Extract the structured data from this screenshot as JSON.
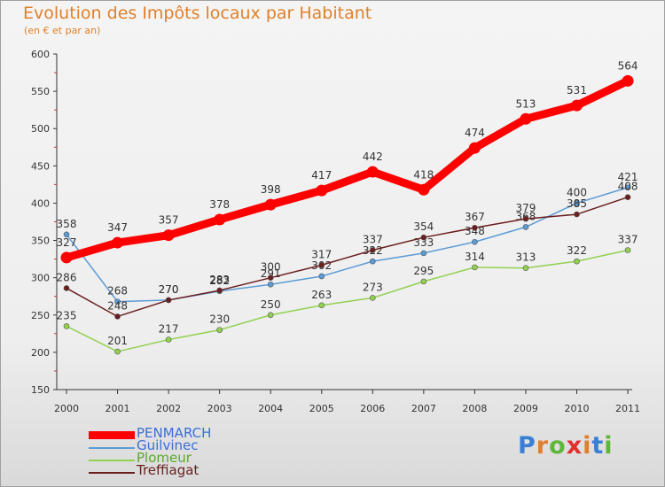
{
  "header": {
    "title": "Evolution des Impôts locaux par Habitant",
    "subtitle": "(en € et par an)"
  },
  "logo": {
    "text": "Proxiti",
    "letters": [
      "P",
      "r",
      "o",
      "x",
      "i",
      "t",
      "i"
    ],
    "colors": [
      "#3a7fd5",
      "#e0802a",
      "#5fb73a",
      "#e03030",
      "#e0802a",
      "#3a7fd5",
      "#5fb73a"
    ]
  },
  "chart_data": {
    "type": "line",
    "title": "Evolution des Impôts locaux par Habitant",
    "subtitle": "(en € et par an)",
    "xlabel": "",
    "ylabel": "",
    "ylim": [
      150,
      600
    ],
    "yticks": [
      150,
      200,
      250,
      300,
      350,
      400,
      450,
      500,
      550,
      600
    ],
    "ytick_labels": [
      "150",
      "200",
      "250",
      "300",
      "350",
      "400",
      "450",
      "500",
      "550",
      "600"
    ],
    "categories": [
      "2000",
      "2001",
      "2002",
      "2003",
      "2004",
      "2005",
      "2006",
      "2007",
      "2008",
      "2009",
      "2010",
      "2011"
    ],
    "grid": false,
    "legend_position": "bottom-left",
    "series": [
      {
        "name": "Guilvinec",
        "color": "#5b9bd5",
        "values": [
          358,
          268,
          270,
          282,
          291,
          302,
          322,
          333,
          348,
          368,
          400,
          421
        ]
      },
      {
        "name": "Plomeur",
        "color": "#92d050",
        "values": [
          235,
          201,
          217,
          230,
          250,
          263,
          273,
          295,
          314,
          313,
          322,
          337
        ]
      },
      {
        "name": "Treffiagat",
        "color": "#6b1e1e",
        "values": [
          286,
          248,
          270,
          283,
          300,
          317,
          337,
          354,
          367,
          379,
          385,
          408
        ]
      },
      {
        "name": "PENMARCH",
        "color": "#ff0000",
        "values": [
          327,
          347,
          357,
          378,
          398,
          417,
          442,
          418,
          474,
          513,
          531,
          564
        ]
      }
    ],
    "legend_order": [
      "PENMARCH",
      "Guilvinec",
      "Plomeur",
      "Treffiagat"
    ]
  }
}
